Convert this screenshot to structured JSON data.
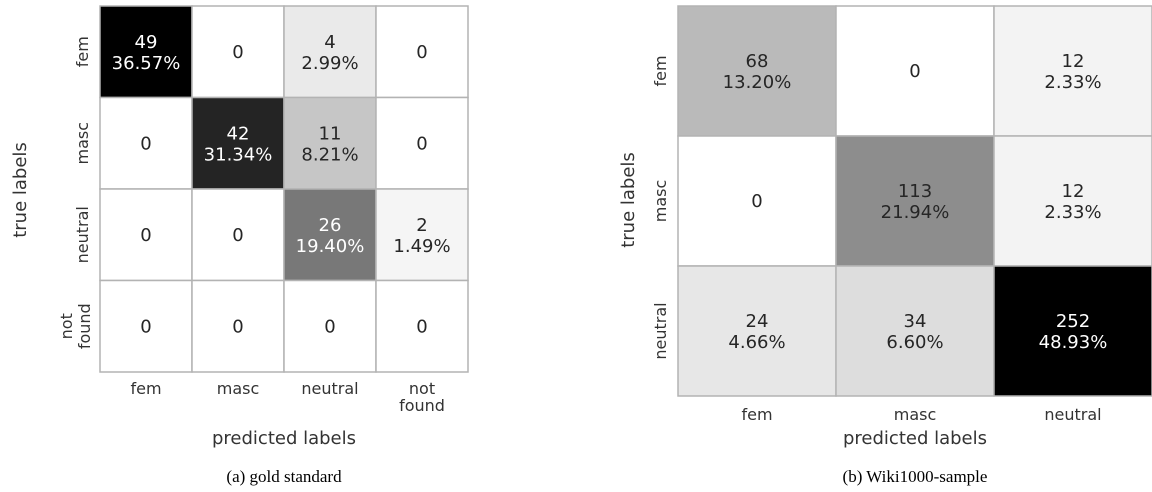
{
  "chart_data": [
    {
      "type": "heatmap",
      "caption": "(a) gold standard",
      "xlabel": "predicted labels",
      "ylabel": "true labels",
      "x_categories": [
        "fem",
        "masc",
        "neutral",
        "not found"
      ],
      "y_categories": [
        "fem",
        "masc",
        "neutral",
        "not found"
      ],
      "counts": [
        [
          49,
          0,
          4,
          0
        ],
        [
          0,
          42,
          11,
          0
        ],
        [
          0,
          0,
          26,
          2
        ],
        [
          0,
          0,
          0,
          0
        ]
      ],
      "percents": [
        [
          "36.57%",
          "",
          "2.99%",
          ""
        ],
        [
          "",
          "31.34%",
          "8.21%",
          ""
        ],
        [
          "",
          "",
          "19.40%",
          "1.49%"
        ],
        [
          "",
          "",
          "",
          ""
        ]
      ],
      "colormap": "greys",
      "vmax": 49
    },
    {
      "type": "heatmap",
      "caption": "(b) Wiki1000-sample",
      "xlabel": "predicted labels",
      "ylabel": "true labels",
      "x_categories": [
        "fem",
        "masc",
        "neutral"
      ],
      "y_categories": [
        "fem",
        "masc",
        "neutral"
      ],
      "counts": [
        [
          68,
          0,
          12
        ],
        [
          0,
          113,
          12
        ],
        [
          24,
          34,
          252
        ]
      ],
      "percents": [
        [
          "13.20%",
          "",
          "2.33%"
        ],
        [
          "",
          "21.94%",
          "2.33%"
        ],
        [
          "4.66%",
          "6.60%",
          "48.93%"
        ]
      ],
      "colormap": "greys",
      "vmax": 252
    }
  ]
}
